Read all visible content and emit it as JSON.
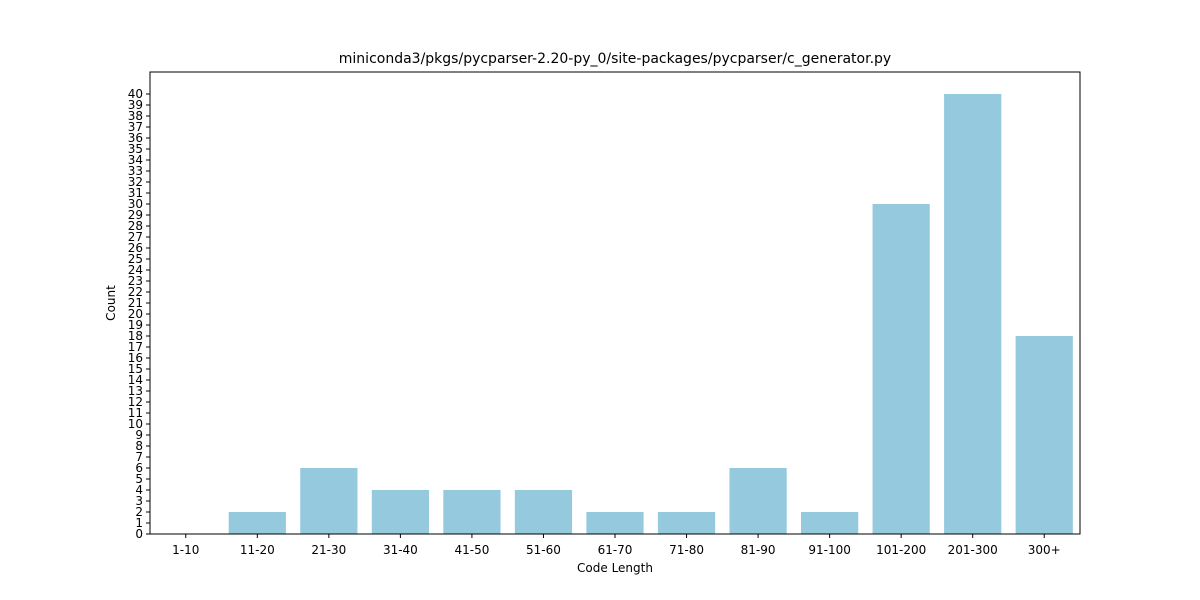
{
  "chart_data": {
    "type": "bar",
    "title": "miniconda3/pkgs/pycparser-2.20-py_0/site-packages/pycparser/c_generator.py",
    "xlabel": "Code Length",
    "ylabel": "Count",
    "categories": [
      "1-10",
      "11-20",
      "21-30",
      "31-40",
      "41-50",
      "51-60",
      "61-70",
      "71-80",
      "81-90",
      "91-100",
      "101-200",
      "201-300",
      "300+"
    ],
    "values": [
      0,
      2,
      6,
      4,
      4,
      4,
      2,
      2,
      6,
      2,
      30,
      40,
      18
    ],
    "ylim": [
      0,
      42
    ],
    "yticks": [
      0,
      1,
      2,
      3,
      4,
      5,
      6,
      7,
      8,
      9,
      10,
      11,
      12,
      13,
      14,
      15,
      16,
      17,
      18,
      19,
      20,
      21,
      22,
      23,
      24,
      25,
      26,
      27,
      28,
      29,
      30,
      31,
      32,
      33,
      34,
      35,
      36,
      37,
      38,
      39,
      40
    ],
    "grid": false,
    "bar_color": "#95c9de"
  }
}
